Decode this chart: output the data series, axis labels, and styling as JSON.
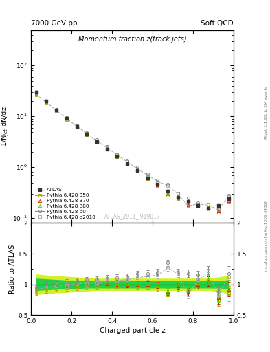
{
  "title_main": "Momentum fraction z(track jets)",
  "header_left": "7000 GeV pp",
  "header_right": "Soft QCD",
  "watermark": "ATLAS_2011_I919017",
  "rivet_label": "Rivet 3.1.10, ≥ 3M events",
  "mcplots_label": "mcplots.cern.ch [arXiv:1306.3436]",
  "ylabel_main": "1/N$_{jet}$ dN/dz",
  "ylabel_ratio": "Ratio to ATLAS",
  "xlabel": "Charged particle z",
  "xlim": [
    0.0,
    1.0
  ],
  "ylim_main": [
    0.08,
    500
  ],
  "ylim_ratio": [
    0.5,
    2.0
  ],
  "z_values": [
    0.025,
    0.075,
    0.125,
    0.175,
    0.225,
    0.275,
    0.325,
    0.375,
    0.425,
    0.475,
    0.525,
    0.575,
    0.625,
    0.675,
    0.725,
    0.775,
    0.825,
    0.875,
    0.925,
    0.975
  ],
  "atlas_y": [
    30.0,
    20.0,
    13.5,
    9.2,
    6.4,
    4.5,
    3.2,
    2.3,
    1.65,
    1.18,
    0.85,
    0.62,
    0.46,
    0.34,
    0.255,
    0.21,
    0.175,
    0.155,
    0.175,
    0.24
  ],
  "atlas_yerr": [
    1.5,
    1.0,
    0.68,
    0.46,
    0.32,
    0.225,
    0.16,
    0.115,
    0.083,
    0.059,
    0.043,
    0.031,
    0.023,
    0.017,
    0.013,
    0.0105,
    0.009,
    0.008,
    0.009,
    0.012
  ],
  "p350_ratio": [
    0.88,
    0.91,
    0.93,
    0.94,
    0.96,
    0.97,
    0.97,
    0.98,
    0.99,
    0.98,
    0.97,
    0.97,
    0.95,
    0.83,
    0.95,
    0.91,
    1.0,
    1.05,
    0.75,
    0.85
  ],
  "p370_ratio": [
    0.94,
    0.97,
    0.98,
    0.99,
    1.0,
    1.01,
    1.01,
    1.01,
    1.02,
    1.0,
    1.0,
    1.0,
    0.99,
    0.88,
    0.97,
    0.88,
    1.0,
    1.05,
    0.78,
    0.92
  ],
  "p380_ratio": [
    0.94,
    0.97,
    0.98,
    0.99,
    1.0,
    1.01,
    1.01,
    1.02,
    1.03,
    1.01,
    1.01,
    1.01,
    1.0,
    0.89,
    0.99,
    0.91,
    1.03,
    1.08,
    0.82,
    0.96
  ],
  "p0_ratio": [
    0.95,
    1.0,
    1.02,
    1.04,
    1.06,
    1.07,
    1.08,
    1.1,
    1.11,
    1.13,
    1.17,
    1.18,
    1.2,
    1.35,
    1.2,
    1.18,
    1.15,
    1.22,
    0.88,
    1.18
  ],
  "p2010_ratio": [
    0.91,
    0.95,
    0.97,
    0.99,
    1.01,
    1.02,
    1.03,
    1.05,
    1.06,
    1.08,
    1.11,
    1.13,
    1.15,
    1.27,
    1.17,
    0.83,
    1.08,
    1.17,
    0.83,
    1.12
  ],
  "atlas_band_inner_vals": [
    0.1,
    0.09,
    0.08,
    0.07,
    0.07,
    0.06,
    0.06,
    0.06,
    0.06,
    0.06,
    0.06,
    0.06,
    0.06,
    0.06,
    0.06,
    0.06,
    0.06,
    0.06,
    0.06,
    0.07
  ],
  "atlas_band_outer_vals": [
    0.17,
    0.15,
    0.14,
    0.13,
    0.12,
    0.11,
    0.1,
    0.1,
    0.1,
    0.1,
    0.1,
    0.1,
    0.1,
    0.1,
    0.1,
    0.1,
    0.1,
    0.1,
    0.12,
    0.15
  ],
  "color_atlas": "#333333",
  "color_p350": "#b8a800",
  "color_p370": "#cc2200",
  "color_p380": "#55cc00",
  "color_p0": "#888888",
  "color_p2010": "#aaaaaa",
  "color_band_inner": "#00cc55",
  "color_band_outer": "#ccee00",
  "legend_entries": [
    "ATLAS",
    "Pythia 6.428 350",
    "Pythia 6.428 370",
    "Pythia 6.428 380",
    "Pythia 6.428 p0",
    "Pythia 6.428 p2010"
  ]
}
